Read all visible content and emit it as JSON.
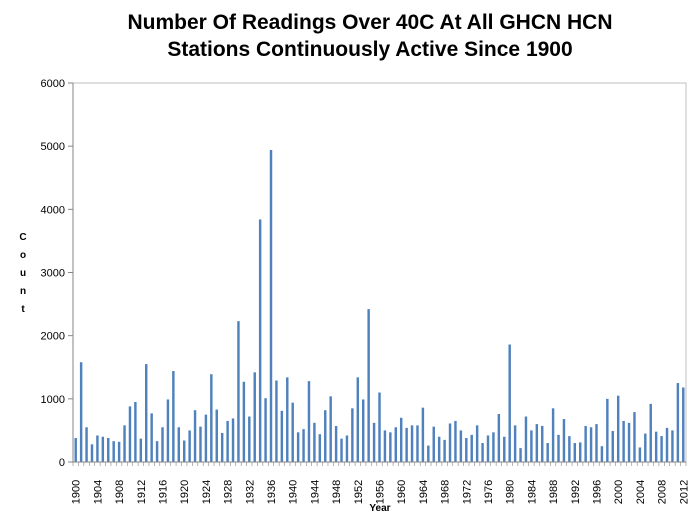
{
  "chart_data": {
    "type": "bar",
    "title_line1": "Number Of Readings Over 40C At All GHCN HCN",
    "title_line2": "Stations Continuously Active Since 1900",
    "xlabel": "Year",
    "ylabel": "Count",
    "ylim": [
      0,
      6000
    ],
    "yticks": [
      "0",
      "1000",
      "2000",
      "3000",
      "4000",
      "5000",
      "6000"
    ],
    "xticks": [
      "1900",
      "1904",
      "1908",
      "1912",
      "1916",
      "1920",
      "1924",
      "1928",
      "1932",
      "1936",
      "1940",
      "1944",
      "1948",
      "1952",
      "1956",
      "1960",
      "1964",
      "1968",
      "1972",
      "1976",
      "1980",
      "1984",
      "1988",
      "1992",
      "1996",
      "2000",
      "2004",
      "2008",
      "2012"
    ],
    "grid": false,
    "legend": false,
    "bar_color": "#4f81bd",
    "categories": [
      1900,
      1901,
      1902,
      1903,
      1904,
      1905,
      1906,
      1907,
      1908,
      1909,
      1910,
      1911,
      1912,
      1913,
      1914,
      1915,
      1916,
      1917,
      1918,
      1919,
      1920,
      1921,
      1922,
      1923,
      1924,
      1925,
      1926,
      1927,
      1928,
      1929,
      1930,
      1931,
      1932,
      1933,
      1934,
      1935,
      1936,
      1937,
      1938,
      1939,
      1940,
      1941,
      1942,
      1943,
      1944,
      1945,
      1946,
      1947,
      1948,
      1949,
      1950,
      1951,
      1952,
      1953,
      1954,
      1955,
      1956,
      1957,
      1958,
      1959,
      1960,
      1961,
      1962,
      1963,
      1964,
      1965,
      1966,
      1967,
      1968,
      1969,
      1970,
      1971,
      1972,
      1973,
      1974,
      1975,
      1976,
      1977,
      1978,
      1979,
      1980,
      1981,
      1982,
      1983,
      1984,
      1985,
      1986,
      1987,
      1988,
      1989,
      1990,
      1991,
      1992,
      1993,
      1994,
      1995,
      1996,
      1997,
      1998,
      1999,
      2000,
      2001,
      2002,
      2003,
      2004,
      2005,
      2006,
      2007,
      2008,
      2009,
      2010,
      2011,
      2012
    ],
    "values": [
      380,
      1580,
      550,
      280,
      420,
      400,
      380,
      330,
      320,
      580,
      880,
      950,
      370,
      1550,
      770,
      330,
      550,
      990,
      1440,
      550,
      340,
      500,
      820,
      560,
      750,
      1390,
      830,
      460,
      650,
      690,
      2230,
      1270,
      720,
      1420,
      3840,
      1010,
      4940,
      1290,
      810,
      1340,
      940,
      470,
      520,
      1280,
      620,
      440,
      820,
      1040,
      570,
      370,
      420,
      850,
      1340,
      990,
      2420,
      620,
      1100,
      500,
      470,
      550,
      700,
      540,
      580,
      580,
      860,
      260,
      560,
      400,
      350,
      610,
      650,
      500,
      380,
      430,
      580,
      300,
      420,
      470,
      760,
      400,
      1860,
      580,
      220,
      720,
      500,
      600,
      570,
      300,
      850,
      430,
      680,
      410,
      300,
      310,
      570,
      550,
      600,
      250,
      1000,
      490,
      1050,
      650,
      620,
      790,
      230,
      450,
      920,
      480,
      410,
      540,
      500,
      1250,
      1180
    ]
  }
}
